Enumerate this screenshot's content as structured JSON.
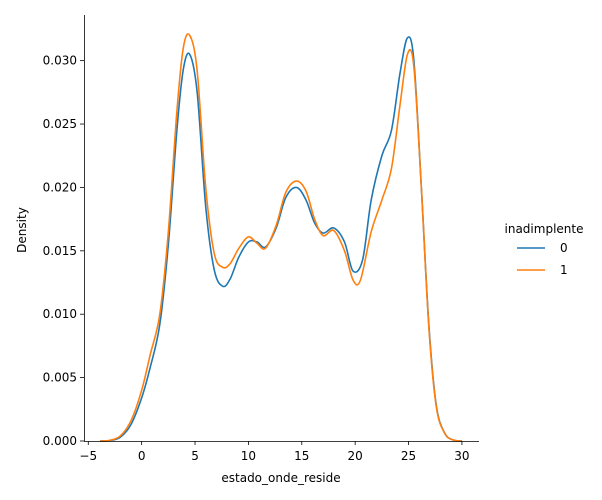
{
  "chart_data": {
    "type": "line",
    "xlabel": "estado_onde_reside",
    "ylabel": "Density",
    "xlim": [
      -5.4,
      31.6
    ],
    "ylim": [
      0,
      0.0336
    ],
    "xticks": [
      -5,
      0,
      5,
      10,
      15,
      20,
      25,
      30
    ],
    "xtick_labels": [
      "−5",
      "0",
      "5",
      "10",
      "15",
      "20",
      "25",
      "30"
    ],
    "yticks": [
      0,
      0.005,
      0.01,
      0.015,
      0.02,
      0.025,
      0.03
    ],
    "ytick_labels": [
      "0.000",
      "0.005",
      "0.010",
      "0.015",
      "0.020",
      "0.025",
      "0.030"
    ],
    "grid": false,
    "legend": {
      "title": "inadimplente",
      "placement": "right"
    },
    "series": [
      {
        "name": "0",
        "color": "#1f77b4",
        "points": [
          [
            -3.9,
            0.0
          ],
          [
            -3.0,
            4e-05
          ],
          [
            -2.0,
            0.0003
          ],
          [
            -1.0,
            0.0013
          ],
          [
            0.0,
            0.0034
          ],
          [
            0.8,
            0.0058
          ],
          [
            1.7,
            0.0092
          ],
          [
            2.5,
            0.0155
          ],
          [
            3.3,
            0.0245
          ],
          [
            3.9,
            0.0293
          ],
          [
            4.5,
            0.0305
          ],
          [
            5.2,
            0.0275
          ],
          [
            6.0,
            0.0185
          ],
          [
            6.8,
            0.0135
          ],
          [
            7.6,
            0.0122
          ],
          [
            8.3,
            0.0128
          ],
          [
            9.1,
            0.0145
          ],
          [
            10.0,
            0.0157
          ],
          [
            10.8,
            0.0157
          ],
          [
            11.6,
            0.0153
          ],
          [
            12.6,
            0.0168
          ],
          [
            13.5,
            0.0192
          ],
          [
            14.5,
            0.02
          ],
          [
            15.4,
            0.019
          ],
          [
            16.2,
            0.0172
          ],
          [
            17.0,
            0.0164
          ],
          [
            18.0,
            0.0168
          ],
          [
            19.0,
            0.0157
          ],
          [
            19.8,
            0.0134
          ],
          [
            20.7,
            0.0143
          ],
          [
            21.5,
            0.019
          ],
          [
            22.5,
            0.0225
          ],
          [
            23.4,
            0.0245
          ],
          [
            24.2,
            0.029
          ],
          [
            24.9,
            0.0318
          ],
          [
            25.5,
            0.03
          ],
          [
            26.2,
            0.02
          ],
          [
            26.9,
            0.0092
          ],
          [
            27.6,
            0.0028
          ],
          [
            28.4,
            0.0006
          ],
          [
            29.2,
            8e-05
          ],
          [
            30.0,
            0.0
          ]
        ]
      },
      {
        "name": "1",
        "color": "#ff7f0e",
        "points": [
          [
            -3.9,
            0.0
          ],
          [
            -3.0,
            5e-05
          ],
          [
            -2.0,
            0.0004
          ],
          [
            -1.0,
            0.0016
          ],
          [
            0.0,
            0.004
          ],
          [
            0.8,
            0.0068
          ],
          [
            1.7,
            0.01
          ],
          [
            2.5,
            0.0165
          ],
          [
            3.3,
            0.026
          ],
          [
            3.9,
            0.031
          ],
          [
            4.5,
            0.032
          ],
          [
            5.2,
            0.0292
          ],
          [
            6.0,
            0.02
          ],
          [
            6.8,
            0.0148
          ],
          [
            7.6,
            0.0137
          ],
          [
            8.3,
            0.014
          ],
          [
            9.1,
            0.0152
          ],
          [
            10.0,
            0.0161
          ],
          [
            10.8,
            0.0156
          ],
          [
            11.6,
            0.0152
          ],
          [
            12.6,
            0.017
          ],
          [
            13.5,
            0.0196
          ],
          [
            14.5,
            0.0205
          ],
          [
            15.4,
            0.0197
          ],
          [
            16.2,
            0.0175
          ],
          [
            17.0,
            0.0162
          ],
          [
            18.0,
            0.0166
          ],
          [
            19.0,
            0.015
          ],
          [
            19.8,
            0.0127
          ],
          [
            20.5,
            0.0127
          ],
          [
            21.5,
            0.0165
          ],
          [
            22.5,
            0.019
          ],
          [
            23.4,
            0.0215
          ],
          [
            24.2,
            0.0265
          ],
          [
            24.9,
            0.0305
          ],
          [
            25.5,
            0.0295
          ],
          [
            26.2,
            0.02
          ],
          [
            26.9,
            0.009
          ],
          [
            27.6,
            0.0027
          ],
          [
            28.4,
            0.0006
          ],
          [
            29.2,
            8e-05
          ],
          [
            30.0,
            0.0
          ]
        ]
      }
    ]
  }
}
